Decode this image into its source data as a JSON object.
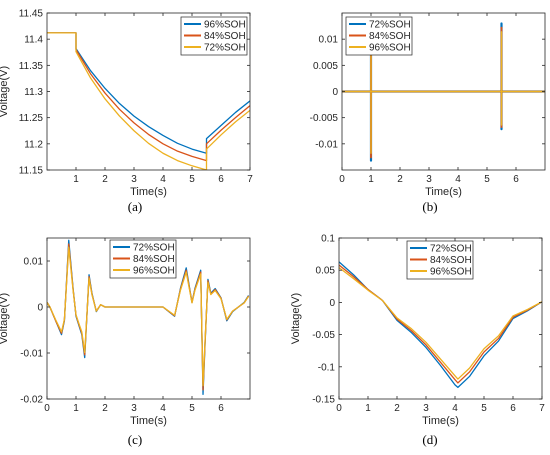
{
  "colors": {
    "blue": "#0072BD",
    "orange": "#D95319",
    "yellow": "#EDB120"
  },
  "chart_data": [
    {
      "id": "a",
      "type": "line",
      "caption": "(a)",
      "xlabel": "Time(s)",
      "ylabel": "Voltage(V)",
      "xlim": [
        0,
        7
      ],
      "ylim": [
        11.15,
        11.45
      ],
      "xticks": [
        1,
        2,
        3,
        4,
        5,
        6,
        7
      ],
      "yticks": [
        11.15,
        11.2,
        11.25,
        11.3,
        11.35,
        11.4,
        11.45
      ],
      "ytick_labels": [
        "11.15",
        "11.2",
        "11.25",
        "11.3",
        "11.35",
        "11.4",
        "11.45"
      ],
      "grid": false,
      "legend_position": "top-right",
      "series": [
        {
          "name": "96%SOH",
          "color": "blue",
          "x": [
            0,
            1.0,
            1.0,
            1.5,
            2.0,
            2.5,
            3.0,
            3.5,
            4.0,
            4.5,
            5.0,
            5.5,
            5.5,
            6.0,
            6.5,
            7.0
          ],
          "y": [
            11.412,
            11.412,
            11.382,
            11.34,
            11.306,
            11.277,
            11.253,
            11.233,
            11.216,
            11.201,
            11.19,
            11.182,
            11.21,
            11.235,
            11.26,
            11.282
          ]
        },
        {
          "name": "84%SOH",
          "color": "orange",
          "x": [
            0,
            1.0,
            1.0,
            1.5,
            2.0,
            2.5,
            3.0,
            3.5,
            4.0,
            4.5,
            5.0,
            5.5,
            5.5,
            6.0,
            6.5,
            7.0
          ],
          "y": [
            11.412,
            11.412,
            11.38,
            11.334,
            11.297,
            11.266,
            11.24,
            11.218,
            11.2,
            11.186,
            11.176,
            11.168,
            11.2,
            11.226,
            11.25,
            11.273
          ]
        },
        {
          "name": "72%SOH",
          "color": "yellow",
          "x": [
            0,
            1.0,
            1.0,
            1.5,
            2.0,
            2.5,
            3.0,
            3.5,
            4.0,
            4.5,
            5.0,
            5.5,
            5.5,
            6.0,
            6.5,
            7.0
          ],
          "y": [
            11.412,
            11.412,
            11.376,
            11.326,
            11.286,
            11.253,
            11.225,
            11.201,
            11.182,
            11.168,
            11.158,
            11.15,
            11.19,
            11.217,
            11.242,
            11.264
          ]
        }
      ]
    },
    {
      "id": "b",
      "type": "line",
      "caption": "(b)",
      "xlabel": "Time(s)",
      "ylabel": "",
      "xlim": [
        0,
        7
      ],
      "ylim": [
        -0.015,
        0.015
      ],
      "xticks": [
        0,
        1,
        2,
        3,
        4,
        5,
        6
      ],
      "yticks": [
        -0.01,
        -0.005,
        0,
        0.005,
        0.01
      ],
      "ytick_labels": [
        "-0.01",
        "-0.005",
        "0",
        "0.005",
        "0.01"
      ],
      "grid": false,
      "legend_position": "top-left",
      "series": [
        {
          "name": "72%SOH",
          "color": "blue",
          "x": [
            0,
            1.0,
            1.0,
            1.0,
            1.0,
            5.5,
            5.5,
            5.5,
            5.5,
            7.0
          ],
          "y": [
            0,
            0,
            0.0075,
            -0.0132,
            0,
            0,
            0.013,
            -0.0072,
            0,
            0
          ]
        },
        {
          "name": "84%SOH",
          "color": "orange",
          "x": [
            0,
            1.0,
            1.0,
            1.0,
            1.0,
            5.5,
            5.5,
            5.5,
            5.5,
            7.0
          ],
          "y": [
            0,
            0,
            0.0072,
            -0.0126,
            0,
            0,
            0.0122,
            -0.0068,
            0,
            0
          ]
        },
        {
          "name": "96%SOH",
          "color": "yellow",
          "x": [
            0,
            1.0,
            1.0,
            1.0,
            1.0,
            5.5,
            5.5,
            5.5,
            5.5,
            7.0
          ],
          "y": [
            0,
            0,
            0.0068,
            -0.0118,
            0,
            0,
            0.0114,
            -0.0064,
            0,
            0
          ]
        }
      ]
    },
    {
      "id": "c",
      "type": "line",
      "caption": "(c)",
      "xlabel": "Time(s)",
      "ylabel": "Voltage(V)",
      "xlim": [
        0,
        7
      ],
      "ylim": [
        -0.02,
        0.015
      ],
      "xticks": [
        0,
        1,
        2,
        3,
        4,
        5,
        6
      ],
      "yticks": [
        -0.02,
        -0.01,
        0,
        0.01
      ],
      "ytick_labels": [
        "-0.02",
        "-0.01",
        "0",
        "0.01"
      ],
      "grid": false,
      "legend_position": "top-center",
      "series": [
        {
          "name": "72%SOH",
          "color": "blue",
          "x": [
            0,
            0.1,
            0.3,
            0.5,
            0.6,
            0.75,
            0.9,
            1.0,
            1.1,
            1.2,
            1.3,
            1.45,
            1.55,
            1.7,
            1.85,
            2.0,
            2.5,
            3.0,
            3.5,
            4.0,
            4.4,
            4.6,
            4.8,
            5.0,
            5.1,
            5.2,
            5.3,
            5.38,
            5.45,
            5.55,
            5.65,
            5.8,
            6.0,
            6.2,
            6.4,
            6.6,
            6.8,
            6.95
          ],
          "y": [
            0.001,
            0.0,
            -0.003,
            -0.006,
            -0.003,
            0.0145,
            0.004,
            -0.002,
            -0.004,
            -0.006,
            -0.011,
            0.007,
            0.003,
            -0.001,
            0.0005,
            0.0,
            0.0,
            0.0,
            0.0,
            0.0,
            -0.002,
            0.004,
            0.0085,
            0.001,
            0.004,
            0.006,
            0.008,
            -0.019,
            -0.008,
            0.006,
            0.003,
            0.004,
            0.002,
            -0.003,
            -0.001,
            0.0,
            0.001,
            0.0025
          ]
        },
        {
          "name": "84%SOH",
          "color": "orange",
          "x": [
            0,
            0.1,
            0.3,
            0.5,
            0.6,
            0.75,
            0.9,
            1.0,
            1.1,
            1.2,
            1.3,
            1.45,
            1.55,
            1.7,
            1.85,
            2.0,
            2.5,
            3.0,
            3.5,
            4.0,
            4.4,
            4.6,
            4.8,
            5.0,
            5.1,
            5.2,
            5.3,
            5.38,
            5.45,
            5.55,
            5.65,
            5.8,
            6.0,
            6.2,
            6.4,
            6.6,
            6.8,
            6.95
          ],
          "y": [
            0.001,
            0.0,
            -0.003,
            -0.0057,
            -0.0028,
            0.0137,
            0.0038,
            -0.0018,
            -0.0038,
            -0.0057,
            -0.0104,
            0.0066,
            0.0028,
            -0.0009,
            0.0005,
            0.0,
            0.0,
            0.0,
            0.0,
            0.0,
            -0.0019,
            0.0038,
            0.008,
            0.001,
            0.0038,
            0.0057,
            0.0076,
            -0.018,
            -0.0076,
            0.0057,
            0.0028,
            0.0038,
            0.0019,
            -0.0028,
            -0.0009,
            0.0,
            0.0009,
            0.0024
          ]
        },
        {
          "name": "96%SOH",
          "color": "yellow",
          "x": [
            0,
            0.1,
            0.3,
            0.5,
            0.6,
            0.75,
            0.9,
            1.0,
            1.1,
            1.2,
            1.3,
            1.45,
            1.55,
            1.7,
            1.85,
            2.0,
            2.5,
            3.0,
            3.5,
            4.0,
            4.4,
            4.6,
            4.8,
            5.0,
            5.1,
            5.2,
            5.3,
            5.38,
            5.45,
            5.55,
            5.65,
            5.8,
            6.0,
            6.2,
            6.4,
            6.6,
            6.8,
            6.95
          ],
          "y": [
            0.001,
            0.0,
            -0.0028,
            -0.0054,
            -0.0027,
            0.013,
            0.0036,
            -0.0017,
            -0.0036,
            -0.0054,
            -0.0099,
            0.0063,
            0.0027,
            -0.0009,
            0.0005,
            0.0,
            0.0,
            0.0,
            0.0,
            0.0,
            -0.0018,
            0.0036,
            0.0076,
            0.0009,
            0.0036,
            0.0054,
            0.0072,
            -0.0171,
            -0.0072,
            0.0054,
            0.0027,
            0.0036,
            0.0018,
            -0.0027,
            -0.0009,
            0.0,
            0.0009,
            0.0023
          ]
        }
      ]
    },
    {
      "id": "d",
      "type": "line",
      "caption": "(d)",
      "xlabel": "Time(s)",
      "ylabel": "Voltage(V)",
      "xlim": [
        0,
        7
      ],
      "ylim": [
        -0.15,
        0.1
      ],
      "xticks": [
        0,
        1,
        2,
        3,
        4,
        5,
        6,
        7
      ],
      "yticks": [
        -0.15,
        -0.1,
        -0.05,
        0,
        0.05,
        0.1
      ],
      "ytick_labels": [
        "-0.15",
        "-0.1",
        "-0.05",
        "0",
        "0.05",
        "0.1"
      ],
      "grid": false,
      "legend_position": "top-center",
      "series": [
        {
          "name": "72%SOH",
          "color": "blue",
          "x": [
            0,
            0.5,
            1.0,
            1.5,
            2.0,
            2.5,
            3.0,
            3.5,
            4.0,
            4.1,
            4.5,
            5.0,
            5.5,
            6.0,
            6.5,
            7.0
          ],
          "y": [
            0.063,
            0.043,
            0.02,
            0.003,
            -0.028,
            -0.047,
            -0.07,
            -0.098,
            -0.128,
            -0.132,
            -0.115,
            -0.083,
            -0.06,
            -0.025,
            -0.013,
            0.001
          ]
        },
        {
          "name": "84%SOH",
          "color": "orange",
          "x": [
            0,
            0.5,
            1.0,
            1.5,
            2.0,
            2.5,
            3.0,
            3.5,
            4.0,
            4.1,
            4.5,
            5.0,
            5.5,
            6.0,
            6.5,
            7.0
          ],
          "y": [
            0.058,
            0.04,
            0.02,
            0.003,
            -0.026,
            -0.044,
            -0.066,
            -0.093,
            -0.12,
            -0.125,
            -0.108,
            -0.077,
            -0.056,
            -0.023,
            -0.012,
            0.001
          ]
        },
        {
          "name": "96%SOH",
          "color": "yellow",
          "x": [
            0,
            0.5,
            1.0,
            1.5,
            2.0,
            2.5,
            3.0,
            3.5,
            4.0,
            4.1,
            4.5,
            5.0,
            5.5,
            6.0,
            6.5,
            7.0
          ],
          "y": [
            0.054,
            0.037,
            0.019,
            0.003,
            -0.024,
            -0.041,
            -0.062,
            -0.088,
            -0.114,
            -0.119,
            -0.102,
            -0.072,
            -0.052,
            -0.021,
            -0.011,
            0.001
          ]
        }
      ]
    }
  ]
}
